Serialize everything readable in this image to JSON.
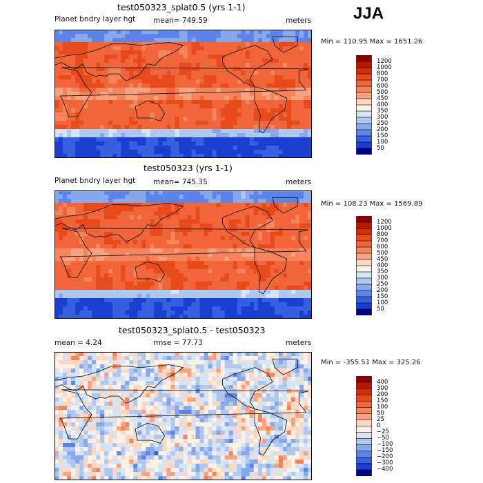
{
  "season": "JJA",
  "panels": [
    {
      "title": "test050323_splat0.5 (yrs 1-1)",
      "left_label": "Planet bndry layer hgt",
      "mean_text": "mean= 749.59",
      "units": "meters",
      "minmax": "Min = 110.95 Max = 1651.26",
      "levels": [
        "1200",
        "1000",
        "800",
        "700",
        "600",
        "500",
        "450",
        "400",
        "350",
        "300",
        "250",
        "200",
        "150",
        "100",
        "50"
      ],
      "colors": [
        "#8b0000",
        "#b51a00",
        "#d42c04",
        "#e84a1c",
        "#f0653a",
        "#f4845c",
        "#f7a382",
        "#fcd8c4",
        "#fdf0e4",
        "#d7e4f4",
        "#b0c8ee",
        "#88a8ea",
        "#5d84e6",
        "#3560e0",
        "#1b3ed0",
        "#00008b"
      ]
    },
    {
      "title": "test050323 (yrs 1-1)",
      "left_label": "Planet bndry layer hgt",
      "mean_text": "mean= 745.35",
      "units": "meters",
      "minmax": "Min = 108.23 Max = 1569.89",
      "levels": [
        "1200",
        "1000",
        "800",
        "700",
        "600",
        "500",
        "450",
        "400",
        "350",
        "300",
        "250",
        "200",
        "150",
        "100",
        "50"
      ],
      "colors": [
        "#8b0000",
        "#b51a00",
        "#d42c04",
        "#e84a1c",
        "#f0653a",
        "#f4845c",
        "#f7a382",
        "#fcd8c4",
        "#fdf0e4",
        "#d7e4f4",
        "#b0c8ee",
        "#88a8ea",
        "#5d84e6",
        "#3560e0",
        "#1b3ed0",
        "#00008b"
      ]
    },
    {
      "title": "test050323_splat0.5 - test050323",
      "left_label": "mean =    4.24",
      "mean_text": "rmse =   77.73",
      "units": "meters",
      "minmax": "Min = -355.51 Max = 325.26",
      "levels": [
        "400",
        "300",
        "200",
        "150",
        "100",
        "50",
        "25",
        "0",
        "−25",
        "−50",
        "−100",
        "−150",
        "−200",
        "−300",
        "−400"
      ],
      "colors": [
        "#8b0000",
        "#b51a00",
        "#d42c04",
        "#e84a1c",
        "#f0653a",
        "#f4845c",
        "#f7a382",
        "#fcd8c4",
        "#fdf0e4",
        "#d7e4f4",
        "#b0c8ee",
        "#88a8ea",
        "#5d84e6",
        "#3560e0",
        "#1b3ed0",
        "#00008b"
      ]
    }
  ],
  "chart_data": [
    {
      "type": "heatmap",
      "title": "test050323_splat0.5 (yrs 1-1)",
      "variable": "Planet bndry layer hgt",
      "units": "meters",
      "mean": 749.59,
      "min": 110.95,
      "max": 1651.26,
      "contour_levels": [
        50,
        100,
        150,
        200,
        250,
        300,
        350,
        400,
        450,
        500,
        600,
        700,
        800,
        1000,
        1200
      ]
    },
    {
      "type": "heatmap",
      "title": "test050323 (yrs 1-1)",
      "variable": "Planet bndry layer hgt",
      "units": "meters",
      "mean": 745.35,
      "min": 108.23,
      "max": 1569.89,
      "contour_levels": [
        50,
        100,
        150,
        200,
        250,
        300,
        350,
        400,
        450,
        500,
        600,
        700,
        800,
        1000,
        1200
      ]
    },
    {
      "type": "heatmap",
      "title": "test050323_splat0.5 - test050323",
      "units": "meters",
      "mean": 4.24,
      "rmse": 77.73,
      "min": -355.51,
      "max": 325.26,
      "contour_levels": [
        -400,
        -300,
        -200,
        -150,
        -100,
        -50,
        -25,
        0,
        25,
        50,
        100,
        150,
        200,
        300,
        400
      ]
    }
  ]
}
